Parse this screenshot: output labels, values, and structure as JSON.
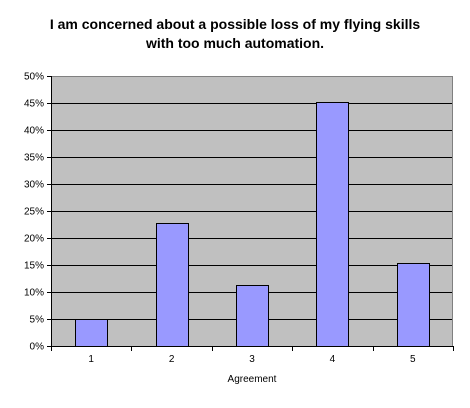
{
  "chart_data": {
    "type": "bar",
    "title_lines": [
      "I am concerned about a possible loss of my flying skills",
      "with too much automation."
    ],
    "xlabel": "Agreement",
    "ylabel": "",
    "categories": [
      "1",
      "2",
      "3",
      "4",
      "5"
    ],
    "values": [
      5,
      22.7,
      11.3,
      45.2,
      15.3
    ],
    "ylim": [
      0,
      50
    ],
    "ytick_values": [
      0,
      5,
      10,
      15,
      20,
      25,
      30,
      35,
      40,
      45,
      50
    ],
    "ytick_labels": [
      "0%",
      "5%",
      "10%",
      "15%",
      "20%",
      "25%",
      "30%",
      "35%",
      "40%",
      "45%",
      "50%"
    ],
    "grid": true,
    "colors": {
      "plot_background": "#c0c0c0",
      "bar_fill": "#9999ff",
      "bar_stroke": "#000000",
      "gridline": "#000000"
    }
  }
}
